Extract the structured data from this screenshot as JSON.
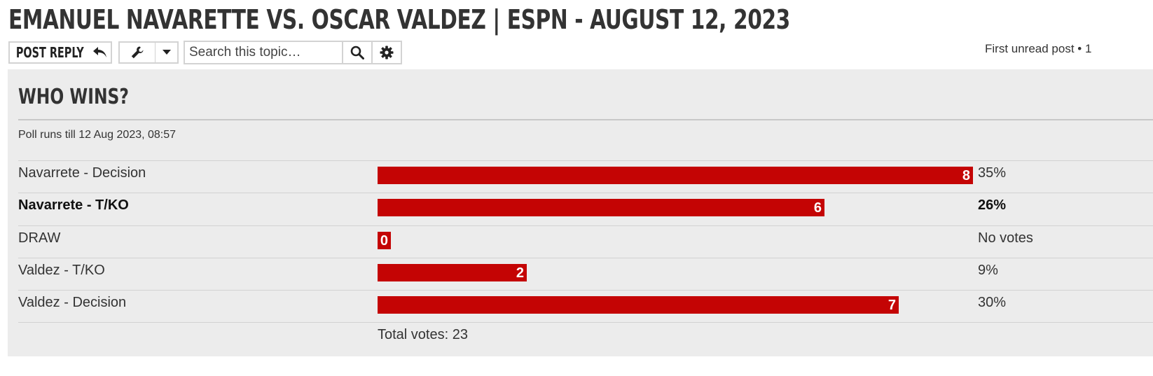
{
  "topic": {
    "title": "EMANUEL NAVARETTE VS. OSCAR VALDEZ | ESPN - AUGUST 12, 2023"
  },
  "toolbar": {
    "post_reply_label": "POST REPLY",
    "search_placeholder": "Search this topic…",
    "first_unread": "First unread post • 1"
  },
  "poll": {
    "title": "WHO WINS?",
    "info": "Poll runs till 12 Aug 2023, 08:57",
    "total_votes": "Total votes: 23",
    "bar_color": "#c40404",
    "options": [
      {
        "label": "Navarrete - Decision",
        "votes": 8,
        "percent_text": "35%",
        "voted": false
      },
      {
        "label": "Navarrete - T/KO",
        "votes": 6,
        "percent_text": "26%",
        "voted": true
      },
      {
        "label": "DRAW",
        "votes": 0,
        "percent_text": "No votes",
        "voted": false
      },
      {
        "label": "Valdez - T/KO",
        "votes": 2,
        "percent_text": "9%",
        "voted": false
      },
      {
        "label": "Valdez - Decision",
        "votes": 7,
        "percent_text": "30%",
        "voted": false
      }
    ]
  },
  "icons": {
    "reply": "reply-arrow-icon",
    "tools": "wrench-icon",
    "dropdown": "caret-down-icon",
    "search": "magnifier-icon",
    "advanced": "gear-icon"
  }
}
